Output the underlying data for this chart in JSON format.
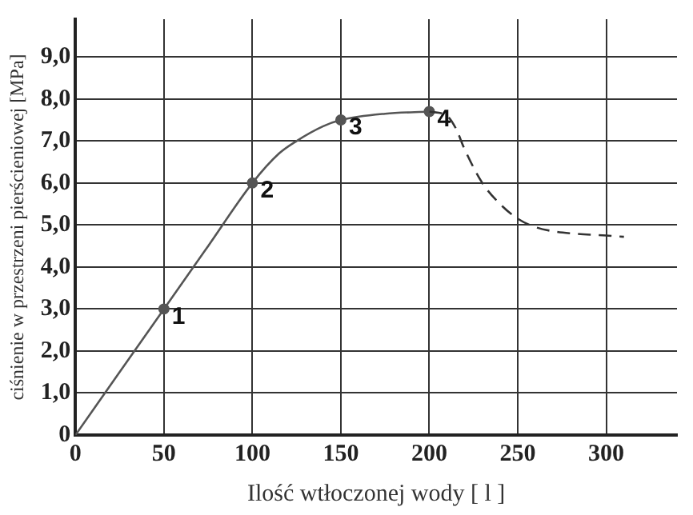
{
  "chart_data": {
    "type": "line",
    "xlabel": "Ilość wtłoczonej wody [ l ]",
    "ylabel": "ciśnienie w przestrzeni pierścieniowej [MPa]",
    "xlim": [
      0,
      340
    ],
    "xticks": [
      0,
      50,
      100,
      150,
      200,
      250,
      300
    ],
    "ylim": [
      0,
      9.9
    ],
    "yticks": [
      0,
      {
        "value": 1,
        "label": "1,0"
      },
      {
        "value": 2,
        "label": "2,0"
      },
      {
        "value": 3,
        "label": "3,0"
      },
      {
        "value": 4,
        "label": "4,0"
      },
      {
        "value": 5,
        "label": "5,0"
      },
      {
        "value": 6,
        "label": "6,0"
      },
      {
        "value": 7,
        "label": "7,0"
      },
      {
        "value": 8,
        "label": "8,0"
      },
      {
        "value": 9,
        "label": "9,0"
      }
    ],
    "grid": true,
    "legend": false,
    "series": [
      {
        "type": "line",
        "color": "#555555",
        "line_style": "solid",
        "marker": "none",
        "x": [
          0,
          50,
          75,
          100,
          115,
          125,
          140,
          150,
          175,
          200
        ],
        "values": [
          0,
          3,
          4.5,
          6,
          6.7,
          7.0,
          7.35,
          7.5,
          7.65,
          7.7
        ]
      },
      {
        "type": "line",
        "color": "#333333",
        "line_style": "dashed",
        "marker": "none",
        "x": [
          200,
          210,
          215,
          220,
          230,
          240,
          250,
          260,
          270,
          280,
          300,
          310
        ],
        "values": [
          7.7,
          7.6,
          7.3,
          6.8,
          6.0,
          5.5,
          5.15,
          4.95,
          4.85,
          4.8,
          4.75,
          4.72
        ]
      },
      {
        "type": "scatter",
        "color": "#555555",
        "marker": "circle",
        "x": [
          50,
          100,
          150,
          200
        ],
        "values": [
          3,
          6,
          7.5,
          7.7
        ]
      }
    ],
    "annotations": [
      {
        "text": "1",
        "x": 50,
        "y": 3
      },
      {
        "text": "2",
        "x": 100,
        "y": 6
      },
      {
        "text": "3",
        "x": 150,
        "y": 7.5
      },
      {
        "text": "4",
        "x": 200,
        "y": 7.7
      }
    ]
  }
}
